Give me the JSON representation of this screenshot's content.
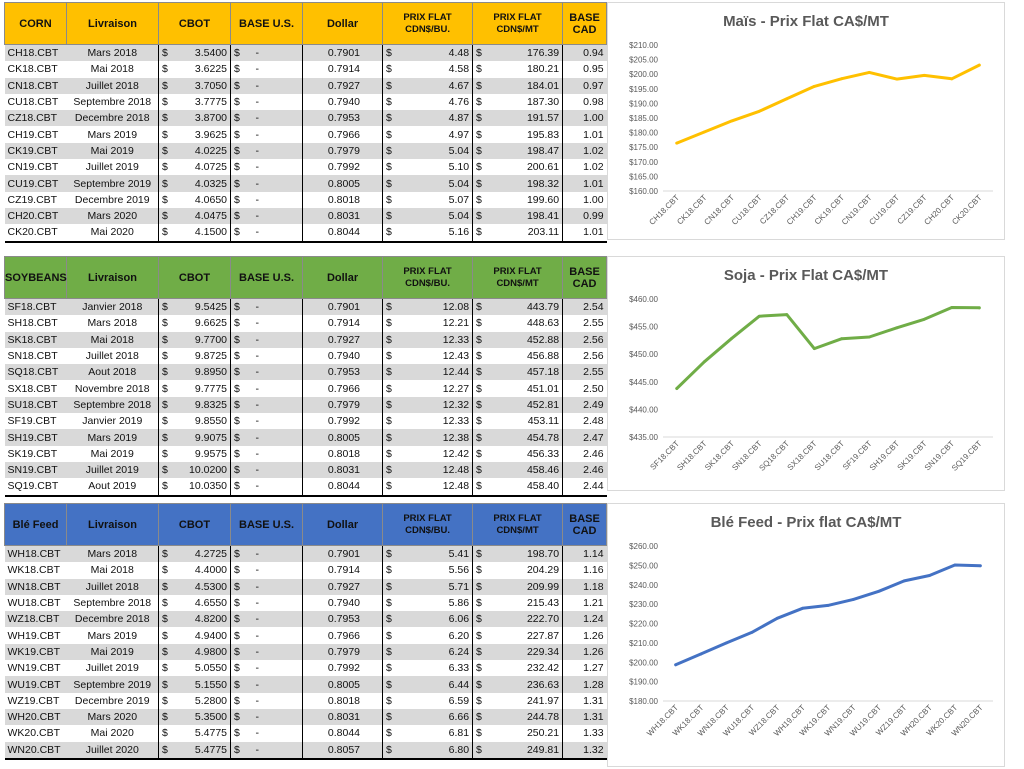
{
  "tables": [
    {
      "id": "corn",
      "headers": {
        "h1": "CORN",
        "h2": "Livraison",
        "h3": "CBOT",
        "h4": "BASE U.S.",
        "h5": "Dollar",
        "h6a": "PRIX FLAT",
        "h6b": "CDN$/BU.",
        "h7a": "PRIX FLAT",
        "h7b": "CDN$/MT",
        "h8": "BASE CAD"
      },
      "rows": [
        {
          "code": "CH18.CBT",
          "month": "Mars 2018",
          "cbot": "3.5400",
          "dollar": "0.7901",
          "flat_bu": "4.48",
          "flat_mt": "176.39",
          "base_cad": "0.94"
        },
        {
          "code": "CK18.CBT",
          "month": "Mai 2018",
          "cbot": "3.6225",
          "dollar": "0.7914",
          "flat_bu": "4.58",
          "flat_mt": "180.21",
          "base_cad": "0.95"
        },
        {
          "code": "CN18.CBT",
          "month": "Juillet 2018",
          "cbot": "3.7050",
          "dollar": "0.7927",
          "flat_bu": "4.67",
          "flat_mt": "184.01",
          "base_cad": "0.97"
        },
        {
          "code": "CU18.CBT",
          "month": "Septembre 2018",
          "cbot": "3.7775",
          "dollar": "0.7940",
          "flat_bu": "4.76",
          "flat_mt": "187.30",
          "base_cad": "0.98"
        },
        {
          "code": "CZ18.CBT",
          "month": "Decembre 2018",
          "cbot": "3.8700",
          "dollar": "0.7953",
          "flat_bu": "4.87",
          "flat_mt": "191.57",
          "base_cad": "1.00"
        },
        {
          "code": "CH19.CBT",
          "month": "Mars 2019",
          "cbot": "3.9625",
          "dollar": "0.7966",
          "flat_bu": "4.97",
          "flat_mt": "195.83",
          "base_cad": "1.01"
        },
        {
          "code": "CK19.CBT",
          "month": "Mai 2019",
          "cbot": "4.0225",
          "dollar": "0.7979",
          "flat_bu": "5.04",
          "flat_mt": "198.47",
          "base_cad": "1.02"
        },
        {
          "code": "CN19.CBT",
          "month": "Juillet 2019",
          "cbot": "4.0725",
          "dollar": "0.7992",
          "flat_bu": "5.10",
          "flat_mt": "200.61",
          "base_cad": "1.02"
        },
        {
          "code": "CU19.CBT",
          "month": "Septembre 2019",
          "cbot": "4.0325",
          "dollar": "0.8005",
          "flat_bu": "5.04",
          "flat_mt": "198.32",
          "base_cad": "1.01"
        },
        {
          "code": "CZ19.CBT",
          "month": "Decembre 2019",
          "cbot": "4.0650",
          "dollar": "0.8018",
          "flat_bu": "5.07",
          "flat_mt": "199.60",
          "base_cad": "1.00"
        },
        {
          "code": "CH20.CBT",
          "month": "Mars 2020",
          "cbot": "4.0475",
          "dollar": "0.8031",
          "flat_bu": "5.04",
          "flat_mt": "198.41",
          "base_cad": "0.99"
        },
        {
          "code": "CK20.CBT",
          "month": "Mai 2020",
          "cbot": "4.1500",
          "dollar": "0.8044",
          "flat_bu": "5.16",
          "flat_mt": "203.11",
          "base_cad": "1.01"
        }
      ]
    },
    {
      "id": "soy",
      "headers": {
        "h1": "SOYBEANS",
        "h2": "Livraison",
        "h3": "CBOT",
        "h4": "BASE U.S.",
        "h5": "Dollar",
        "h6a": "PRIX FLAT",
        "h6b": "CDN$/BU.",
        "h7a": "PRIX FLAT",
        "h7b": "CDN$/MT",
        "h8": "BASE CAD"
      },
      "rows": [
        {
          "code": "SF18.CBT",
          "month": "Janvier 2018",
          "cbot": "9.5425",
          "dollar": "0.7901",
          "flat_bu": "12.08",
          "flat_mt": "443.79",
          "base_cad": "2.54"
        },
        {
          "code": "SH18.CBT",
          "month": "Mars 2018",
          "cbot": "9.6625",
          "dollar": "0.7914",
          "flat_bu": "12.21",
          "flat_mt": "448.63",
          "base_cad": "2.55"
        },
        {
          "code": "SK18.CBT",
          "month": "Mai 2018",
          "cbot": "9.7700",
          "dollar": "0.7927",
          "flat_bu": "12.33",
          "flat_mt": "452.88",
          "base_cad": "2.56"
        },
        {
          "code": "SN18.CBT",
          "month": "Juillet 2018",
          "cbot": "9.8725",
          "dollar": "0.7940",
          "flat_bu": "12.43",
          "flat_mt": "456.88",
          "base_cad": "2.56"
        },
        {
          "code": "SQ18.CBT",
          "month": "Aout 2018",
          "cbot": "9.8950",
          "dollar": "0.7953",
          "flat_bu": "12.44",
          "flat_mt": "457.18",
          "base_cad": "2.55"
        },
        {
          "code": "SX18.CBT",
          "month": "Novembre 2018",
          "cbot": "9.7775",
          "dollar": "0.7966",
          "flat_bu": "12.27",
          "flat_mt": "451.01",
          "base_cad": "2.50"
        },
        {
          "code": "SU18.CBT",
          "month": "Septembre 2018",
          "cbot": "9.8325",
          "dollar": "0.7979",
          "flat_bu": "12.32",
          "flat_mt": "452.81",
          "base_cad": "2.49"
        },
        {
          "code": "SF19.CBT",
          "month": "Janvier 2019",
          "cbot": "9.8550",
          "dollar": "0.7992",
          "flat_bu": "12.33",
          "flat_mt": "453.11",
          "base_cad": "2.48"
        },
        {
          "code": "SH19.CBT",
          "month": "Mars 2019",
          "cbot": "9.9075",
          "dollar": "0.8005",
          "flat_bu": "12.38",
          "flat_mt": "454.78",
          "base_cad": "2.47"
        },
        {
          "code": "SK19.CBT",
          "month": "Mai 2019",
          "cbot": "9.9575",
          "dollar": "0.8018",
          "flat_bu": "12.42",
          "flat_mt": "456.33",
          "base_cad": "2.46"
        },
        {
          "code": "SN19.CBT",
          "month": "Juillet 2019",
          "cbot": "10.0200",
          "dollar": "0.8031",
          "flat_bu": "12.48",
          "flat_mt": "458.46",
          "base_cad": "2.46"
        },
        {
          "code": "SQ19.CBT",
          "month": "Aout 2019",
          "cbot": "10.0350",
          "dollar": "0.8044",
          "flat_bu": "12.48",
          "flat_mt": "458.40",
          "base_cad": "2.44"
        }
      ]
    },
    {
      "id": "ble",
      "headers": {
        "h1": "Blé Feed",
        "h2": "Livraison",
        "h3": "CBOT",
        "h4": "BASE U.S.",
        "h5": "Dollar",
        "h6a": "PRIX FLAT",
        "h6b": "CDN$/BU.",
        "h7a": "PRIX FLAT",
        "h7b": "CDN$/MT",
        "h8": "BASE CAD"
      },
      "rows": [
        {
          "code": "WH18.CBT",
          "month": "Mars 2018",
          "cbot": "4.2725",
          "dollar": "0.7901",
          "flat_bu": "5.41",
          "flat_mt": "198.70",
          "base_cad": "1.14"
        },
        {
          "code": "WK18.CBT",
          "month": "Mai 2018",
          "cbot": "4.4000",
          "dollar": "0.7914",
          "flat_bu": "5.56",
          "flat_mt": "204.29",
          "base_cad": "1.16"
        },
        {
          "code": "WN18.CBT",
          "month": "Juillet 2018",
          "cbot": "4.5300",
          "dollar": "0.7927",
          "flat_bu": "5.71",
          "flat_mt": "209.99",
          "base_cad": "1.18"
        },
        {
          "code": "WU18.CBT",
          "month": "Septembre 2018",
          "cbot": "4.6550",
          "dollar": "0.7940",
          "flat_bu": "5.86",
          "flat_mt": "215.43",
          "base_cad": "1.21"
        },
        {
          "code": "WZ18.CBT",
          "month": "Decembre 2018",
          "cbot": "4.8200",
          "dollar": "0.7953",
          "flat_bu": "6.06",
          "flat_mt": "222.70",
          "base_cad": "1.24"
        },
        {
          "code": "WH19.CBT",
          "month": "Mars 2019",
          "cbot": "4.9400",
          "dollar": "0.7966",
          "flat_bu": "6.20",
          "flat_mt": "227.87",
          "base_cad": "1.26"
        },
        {
          "code": "WK19.CBT",
          "month": "Mai 2019",
          "cbot": "4.9800",
          "dollar": "0.7979",
          "flat_bu": "6.24",
          "flat_mt": "229.34",
          "base_cad": "1.26"
        },
        {
          "code": "WN19.CBT",
          "month": "Juillet 2019",
          "cbot": "5.0550",
          "dollar": "0.7992",
          "flat_bu": "6.33",
          "flat_mt": "232.42",
          "base_cad": "1.27"
        },
        {
          "code": "WU19.CBT",
          "month": "Septembre 2019",
          "cbot": "5.1550",
          "dollar": "0.8005",
          "flat_bu": "6.44",
          "flat_mt": "236.63",
          "base_cad": "1.28"
        },
        {
          "code": "WZ19.CBT",
          "month": "Decembre 2019",
          "cbot": "5.2800",
          "dollar": "0.8018",
          "flat_bu": "6.59",
          "flat_mt": "241.97",
          "base_cad": "1.31"
        },
        {
          "code": "WH20.CBT",
          "month": "Mars 2020",
          "cbot": "5.3500",
          "dollar": "0.8031",
          "flat_bu": "6.66",
          "flat_mt": "244.78",
          "base_cad": "1.31"
        },
        {
          "code": "WK20.CBT",
          "month": "Mai 2020",
          "cbot": "5.4775",
          "dollar": "0.8044",
          "flat_bu": "6.81",
          "flat_mt": "250.21",
          "base_cad": "1.33"
        },
        {
          "code": "WN20.CBT",
          "month": "Juillet 2020",
          "cbot": "5.4775",
          "dollar": "0.8057",
          "flat_bu": "6.80",
          "flat_mt": "249.81",
          "base_cad": "1.32"
        }
      ]
    }
  ],
  "labels": {
    "currency": "$",
    "base_us": "-"
  },
  "chart_data": [
    {
      "type": "line",
      "title": "Maïs - Prix Flat CA$/MT",
      "color": "#ffc000",
      "categories": [
        "CH18.CBT",
        "CK18.CBT",
        "CN18.CBT",
        "CU18.CBT",
        "CZ18.CBT",
        "CH19.CBT",
        "CK19.CBT",
        "CN19.CBT",
        "CU19.CBT",
        "CZ19.CBT",
        "CH20.CBT",
        "CK20.CBT"
      ],
      "values": [
        176.39,
        180.21,
        184.01,
        187.3,
        191.57,
        195.83,
        198.47,
        200.61,
        198.32,
        199.6,
        198.41,
        203.11
      ],
      "yticks": [
        "$210.00",
        "$205.00",
        "$200.00",
        "$195.00",
        "$190.00",
        "$185.00",
        "$180.00",
        "$175.00",
        "$170.00",
        "$165.00",
        "$160.00"
      ],
      "ylim": [
        160,
        210
      ],
      "grid": false
    },
    {
      "type": "line",
      "title": "Soja - Prix Flat CA$/MT",
      "color": "#70ad47",
      "categories": [
        "SF18.CBT",
        "SH18.CBT",
        "SK18.CBT",
        "SN18.CBT",
        "SQ18.CBT",
        "SX18.CBT",
        "SU18.CBT",
        "SF19.CBT",
        "SH19.CBT",
        "SK19.CBT",
        "SN19.CBT",
        "SQ19.CBT"
      ],
      "values": [
        443.79,
        448.63,
        452.88,
        456.88,
        457.18,
        451.01,
        452.81,
        453.11,
        454.78,
        456.33,
        458.46,
        458.4
      ],
      "yticks": [
        "$460.00",
        "$455.00",
        "$450.00",
        "$445.00",
        "$440.00",
        "$435.00"
      ],
      "ylim": [
        435,
        460
      ],
      "grid": false
    },
    {
      "type": "line",
      "title": "Blé Feed - Prix flat CA$/MT",
      "color": "#4472c4",
      "categories": [
        "WH18.CBT",
        "WK18.CBT",
        "WN18.CBT",
        "WU18.CBT",
        "WZ18.CBT",
        "WH19.CBT",
        "WK19.CBT",
        "WN19.CBT",
        "WU19.CBT",
        "WZ19.CBT",
        "WH20.CBT",
        "WK20.CBT",
        "WN20.CBT"
      ],
      "values": [
        198.7,
        204.29,
        209.99,
        215.43,
        222.7,
        227.87,
        229.34,
        232.42,
        236.63,
        241.97,
        244.78,
        250.21,
        249.81
      ],
      "yticks": [
        "$260.00",
        "$250.00",
        "$240.00",
        "$230.00",
        "$220.00",
        "$210.00",
        "$200.00",
        "$190.00",
        "$180.00"
      ],
      "ylim": [
        180,
        260
      ],
      "grid": false
    }
  ]
}
